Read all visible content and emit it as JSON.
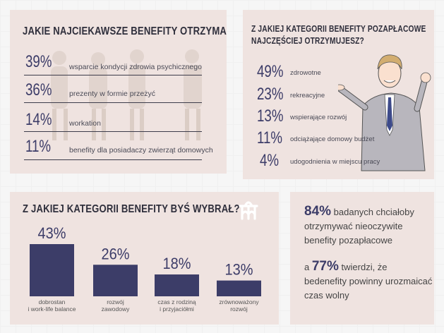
{
  "panel1": {
    "title": "JAKIE NAJCIEKAWSZE BENEFITY OTRZYMAŁEŚ?",
    "items": [
      {
        "value": "39%",
        "label": "wsparcie kondycji zdrowia psychicznego"
      },
      {
        "value": "36%",
        "label": "prezenty w formie przeżyć"
      },
      {
        "value": "14%",
        "label": "workation"
      },
      {
        "value": "11%",
        "label": "benefity dla posiadaczy zwierząt domowych"
      }
    ]
  },
  "panel2": {
    "title_line1": "Z JAKIEJ KATEGORII BENEFITY POZAPŁACOWE",
    "title_line2": "NAJCZĘŚCIEJ OTRZYMUJESZ?",
    "items": [
      {
        "value": "49%",
        "label": "zdrowotne"
      },
      {
        "value": "23%",
        "label": "rekreacyjne"
      },
      {
        "value": "13%",
        "label": "wspierające rozwój"
      },
      {
        "value": "11%",
        "label": "odciążające domowy budżet"
      },
      {
        "value": "4%",
        "label": "udogodnienia w miejscu pracy"
      }
    ]
  },
  "panel3": {
    "title": "Z JAKIEJ KATEGORII BENEFITY BYŚ WYBRAŁ?",
    "logo": "mm-logo-icon"
  },
  "chart_data": {
    "type": "bar",
    "title": "Z JAKIEJ KATEGORII BENEFITY BYŚ WYBRAŁ?",
    "categories": [
      [
        "dobrostan",
        "i work-life balance"
      ],
      [
        "rozwój",
        "zawodowy"
      ],
      [
        "czas z rodziną",
        "i przyjaciółmi"
      ],
      [
        "zrównoważony",
        "rozwój"
      ]
    ],
    "values": [
      43,
      26,
      18,
      13
    ],
    "value_labels": [
      "43%",
      "26%",
      "18%",
      "13%"
    ],
    "ylim": [
      0,
      43
    ],
    "bar_color": "#3c3d68"
  },
  "panel4": {
    "pct1": "84%",
    "text1_a": "badanych chciałoby",
    "text1_b": "otrzymywać nieoczywite",
    "text1_c": "benefity pozapłacowe",
    "a_word": "a",
    "pct2": "77%",
    "text2_a": "twierdzi, że",
    "text2_b": "bedenefity powinny urozmaicać",
    "text2_c": "czas wolny"
  },
  "colors": {
    "accent": "#3c3d68",
    "panel": "#efe3e0",
    "text": "#3a3a48"
  }
}
